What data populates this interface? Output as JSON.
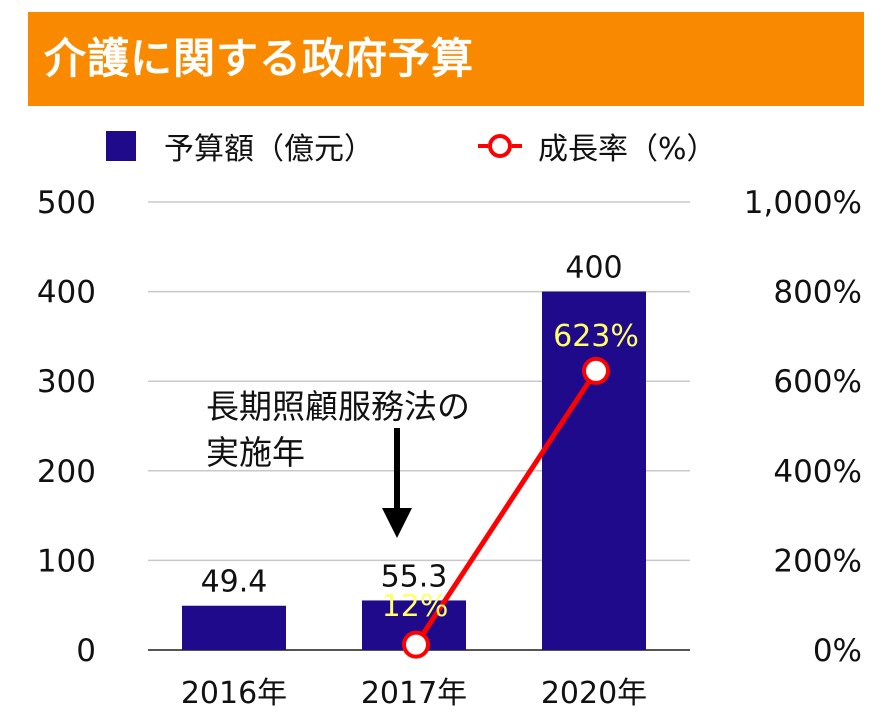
{
  "title": "介護に関する政府予算",
  "legend": {
    "bar_label": "予算額（億元）",
    "line_label": "成長率（%）"
  },
  "colors": {
    "title_bg": "#f98a00",
    "bar": "#1f0a8c",
    "line": "#ff0000",
    "rate_label": "#ffff66"
  },
  "chart_data": {
    "type": "bar",
    "title": "介護に関する政府予算",
    "categories": [
      "2016年",
      "2017年",
      "2020年"
    ],
    "series": [
      {
        "name": "予算額（億元）",
        "type": "bar",
        "axis": "left",
        "values": [
          49.4,
          55.3,
          400
        ],
        "labels": [
          "49.4",
          "55.3",
          "400"
        ]
      },
      {
        "name": "成長率（%）",
        "type": "line",
        "axis": "right",
        "x": [
          "2017年",
          "2020年"
        ],
        "values": [
          12,
          623
        ],
        "labels": [
          "12%",
          "623%"
        ]
      }
    ],
    "y_left": {
      "range": [
        0,
        500
      ],
      "ticks": [
        "0",
        "100",
        "200",
        "300",
        "400",
        "500"
      ]
    },
    "y_right": {
      "range": [
        0,
        1000
      ],
      "ticks": [
        "0%",
        "200%",
        "400%",
        "600%",
        "800%",
        "1,000%"
      ]
    },
    "grid": true,
    "legend_position": "top",
    "annotation": {
      "lines": [
        "長期照顧服務法の",
        "実施年"
      ],
      "points_to": "2017年"
    }
  }
}
